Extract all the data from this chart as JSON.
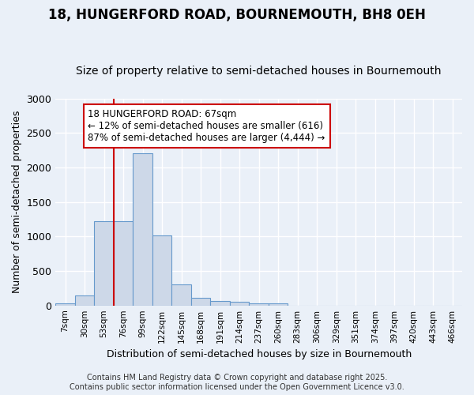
{
  "title": "18, HUNGERFORD ROAD, BOURNEMOUTH, BH8 0EH",
  "subtitle": "Size of property relative to semi-detached houses in Bournemouth",
  "xlabel": "Distribution of semi-detached houses by size in Bournemouth",
  "ylabel": "Number of semi-detached properties",
  "bar_labels": [
    "7sqm",
    "30sqm",
    "53sqm",
    "76sqm",
    "99sqm",
    "122sqm",
    "145sqm",
    "168sqm",
    "191sqm",
    "214sqm",
    "237sqm",
    "260sqm",
    "283sqm",
    "306sqm",
    "329sqm",
    "351sqm",
    "374sqm",
    "397sqm",
    "420sqm",
    "443sqm",
    "466sqm"
  ],
  "bar_heights": [
    30,
    150,
    1220,
    1220,
    2200,
    1020,
    300,
    110,
    65,
    55,
    35,
    30,
    0,
    0,
    0,
    0,
    0,
    0,
    0,
    0,
    0
  ],
  "bar_color": "#cdd8e8",
  "bar_edge_color": "#6699cc",
  "ylim": [
    0,
    3000
  ],
  "yticks": [
    0,
    500,
    1000,
    1500,
    2000,
    2500,
    3000
  ],
  "vline_x_index": 2.5,
  "vline_color": "#cc0000",
  "annotation_text": "18 HUNGERFORD ROAD: 67sqm\n← 12% of semi-detached houses are smaller (616)\n87% of semi-detached houses are larger (4,444) →",
  "annotation_box_color": "#ffffff",
  "annotation_box_edge": "#cc0000",
  "bg_color": "#eaf0f8",
  "grid_color": "#ffffff",
  "footer_line1": "Contains HM Land Registry data © Crown copyright and database right 2025.",
  "footer_line2": "Contains public sector information licensed under the Open Government Licence v3.0.",
  "title_fontsize": 12,
  "subtitle_fontsize": 10,
  "footer_fontsize": 7,
  "bar_width": 1.0
}
